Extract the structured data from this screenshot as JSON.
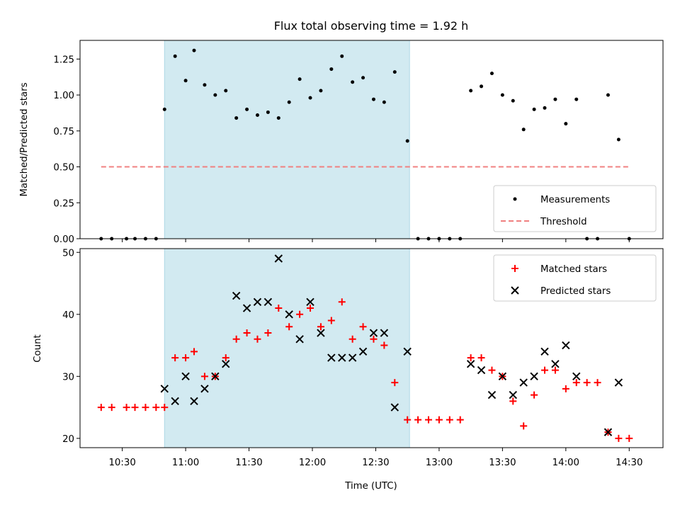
{
  "chart_data": [
    {
      "type": "scatter",
      "title": "Flux total observing time = 1.92 h",
      "xlabel": "",
      "ylabel": "Matched/Predicted stars",
      "ylim": [
        0,
        1.38
      ],
      "yticks": [
        "0.00",
        "0.25",
        "0.50",
        "0.75",
        "1.00",
        "1.25"
      ],
      "ytick_values": [
        0,
        0.25,
        0.5,
        0.75,
        1.0,
        1.25
      ],
      "xlim": [
        "10:10",
        "14:46"
      ],
      "shaded_span": [
        "10:50",
        "12:46"
      ],
      "shade_color": "#add8e6",
      "grid": false,
      "legend": "bottom-right",
      "series": [
        {
          "name": "Measurements",
          "marker": "dot",
          "color": "#000000",
          "x": [
            "10:20",
            "10:25",
            "10:32",
            "10:36",
            "10:41",
            "10:46",
            "10:50",
            "10:55",
            "11:00",
            "11:04",
            "11:09",
            "11:14",
            "11:19",
            "11:24",
            "11:29",
            "11:34",
            "11:39",
            "11:44",
            "11:49",
            "11:54",
            "11:59",
            "12:04",
            "12:09",
            "12:14",
            "12:19",
            "12:24",
            "12:29",
            "12:34",
            "12:39",
            "12:45",
            "12:50",
            "12:55",
            "13:00",
            "13:05",
            "13:10",
            "13:15",
            "13:20",
            "13:25",
            "13:30",
            "13:35",
            "13:40",
            "13:45",
            "13:50",
            "13:55",
            "14:00",
            "14:05",
            "14:10",
            "14:15",
            "14:20",
            "14:25",
            "14:30"
          ],
          "y": [
            0,
            0,
            0,
            0,
            0,
            0,
            0.9,
            1.27,
            1.1,
            1.31,
            1.07,
            1.0,
            1.03,
            0.84,
            0.9,
            0.86,
            0.88,
            0.84,
            0.95,
            1.11,
            0.98,
            1.03,
            1.18,
            1.27,
            1.09,
            1.12,
            0.97,
            0.95,
            1.16,
            0.68,
            0,
            0,
            0,
            0,
            0,
            1.03,
            1.06,
            1.15,
            1.0,
            0.96,
            0.76,
            0.9,
            0.91,
            0.97,
            0.8,
            0.97,
            0,
            0,
            1.0,
            0.69,
            0
          ]
        },
        {
          "name": "Threshold",
          "style": "dashed",
          "color": "#f08080",
          "x": [
            "10:20",
            "14:30"
          ],
          "y": [
            0.5,
            0.5
          ]
        }
      ]
    },
    {
      "type": "scatter",
      "title": "",
      "xlabel": "Time (UTC)",
      "ylabel": "Count",
      "ylim": [
        18.5,
        50.6
      ],
      "yticks": [
        "20",
        "30",
        "40",
        "50"
      ],
      "ytick_values": [
        20,
        30,
        40,
        50
      ],
      "xlim": [
        "10:10",
        "14:46"
      ],
      "xticks": [
        "10:30",
        "11:00",
        "11:30",
        "12:00",
        "12:30",
        "13:00",
        "13:30",
        "14:00",
        "14:30"
      ],
      "shaded_span": [
        "10:50",
        "12:46"
      ],
      "shade_color": "#add8e6",
      "grid": false,
      "legend": "top-right",
      "series": [
        {
          "name": "Matched stars",
          "marker": "plus",
          "color": "#ff0000",
          "x": [
            "10:20",
            "10:25",
            "10:32",
            "10:36",
            "10:41",
            "10:46",
            "10:50",
            "10:55",
            "11:00",
            "11:04",
            "11:09",
            "11:14",
            "11:19",
            "11:24",
            "11:29",
            "11:34",
            "11:39",
            "11:44",
            "11:49",
            "11:54",
            "11:59",
            "12:04",
            "12:09",
            "12:14",
            "12:19",
            "12:24",
            "12:29",
            "12:34",
            "12:39",
            "12:45",
            "12:50",
            "12:55",
            "13:00",
            "13:05",
            "13:10",
            "13:15",
            "13:20",
            "13:25",
            "13:30",
            "13:35",
            "13:40",
            "13:45",
            "13:50",
            "13:55",
            "14:00",
            "14:05",
            "14:10",
            "14:15",
            "14:20",
            "14:25",
            "14:30"
          ],
          "y": [
            25,
            25,
            25,
            25,
            25,
            25,
            25,
            33,
            33,
            34,
            30,
            30,
            33,
            36,
            37,
            36,
            37,
            41,
            38,
            40,
            41,
            38,
            39,
            42,
            36,
            38,
            36,
            35,
            29,
            23,
            23,
            23,
            23,
            23,
            23,
            33,
            33,
            31,
            30,
            26,
            22,
            27,
            31,
            31,
            28,
            29,
            29,
            29,
            21,
            20,
            20
          ]
        },
        {
          "name": "Predicted stars",
          "marker": "x",
          "color": "#000000",
          "x": [
            "10:50",
            "10:55",
            "11:00",
            "11:04",
            "11:09",
            "11:14",
            "11:19",
            "11:24",
            "11:29",
            "11:34",
            "11:39",
            "11:44",
            "11:49",
            "11:54",
            "11:59",
            "12:04",
            "12:09",
            "12:14",
            "12:19",
            "12:24",
            "12:29",
            "12:34",
            "12:39",
            "12:45",
            "13:15",
            "13:20",
            "13:25",
            "13:30",
            "13:35",
            "13:40",
            "13:45",
            "13:50",
            "13:55",
            "14:00",
            "14:05",
            "14:20",
            "14:25"
          ],
          "y": [
            28,
            26,
            30,
            26,
            28,
            30,
            32,
            43,
            41,
            42,
            42,
            49,
            40,
            36,
            42,
            37,
            33,
            33,
            33,
            34,
            37,
            37,
            25,
            34,
            32,
            31,
            27,
            30,
            27,
            29,
            30,
            34,
            32,
            35,
            30,
            21,
            29
          ]
        }
      ]
    }
  ]
}
